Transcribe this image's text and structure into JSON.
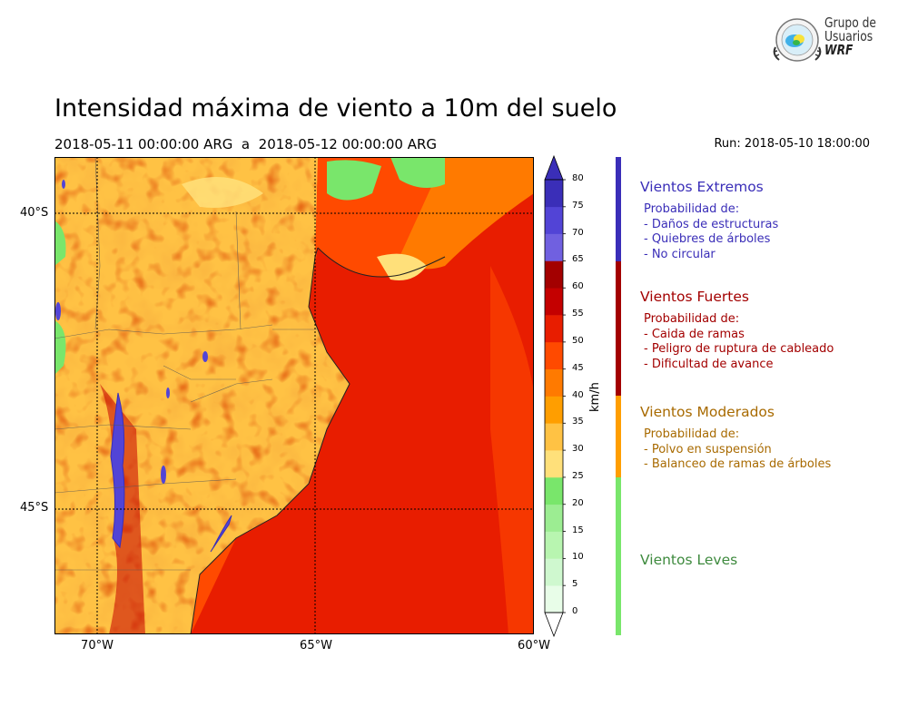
{
  "title": "Intensidad máxima de viento a 10m del suelo",
  "subtitle": "2018-05-11 00:00:00 ARG  a  2018-05-12 00:00:00 ARG",
  "run": "Run: 2018-05-10 18:00:00",
  "logo": {
    "line1": "Grupo de",
    "line2": "Usuarios",
    "line3": "WRF"
  },
  "map": {
    "lat_labels": [
      "40°S",
      "45°S"
    ],
    "lon_labels": [
      "70°W",
      "65°W",
      "60°W"
    ],
    "extent": {
      "lon_min": -71,
      "lon_max": -60,
      "lat_min": -47.1,
      "lat_max": -39.1
    }
  },
  "colorbar": {
    "unit": "km/h",
    "ticks": [
      "0",
      "5",
      "10",
      "15",
      "20",
      "25",
      "30",
      "35",
      "40",
      "45",
      "50",
      "55",
      "60",
      "65",
      "70",
      "75",
      "80"
    ],
    "colors": [
      "#e8fde8",
      "#cff8cf",
      "#b8f5b0",
      "#9ced92",
      "#79e66b",
      "#ffe07a",
      "#ffc244",
      "#ff9e00",
      "#ff7a00",
      "#ff4a00",
      "#e81d00",
      "#c40000",
      "#a30000",
      "#7060e0",
      "#5244d6",
      "#3a2eb8"
    ],
    "under_color": "#ffffff",
    "over_color": "#3a2eb8"
  },
  "categories": [
    {
      "title": "Vientos Extremos",
      "color": "#3a2eb8",
      "lines": [
        "Probabilidad de:",
        "- Daños de estructuras",
        "- Quiebres de árboles",
        "- No circular"
      ]
    },
    {
      "title": "Vientos Fuertes",
      "color": "#a30000",
      "lines": [
        "Probabilidad de:",
        "- Caida de ramas",
        "- Peligro de ruptura de cableado",
        "- Dificultad de avance"
      ]
    },
    {
      "title": "Vientos Moderados",
      "color": "#a86a00",
      "lines": [
        "Probabilidad de:",
        "- Polvo en suspensión",
        "- Balanceo de ramas de árboles"
      ]
    },
    {
      "title": "Vientos Leves",
      "color": "#3e8a3e",
      "lines": []
    }
  ],
  "band_colors": {
    "extremos": "#3a2eb8",
    "fuertes": "#a30000",
    "moderados": "#ff9e00",
    "leves": "#79e66b"
  }
}
